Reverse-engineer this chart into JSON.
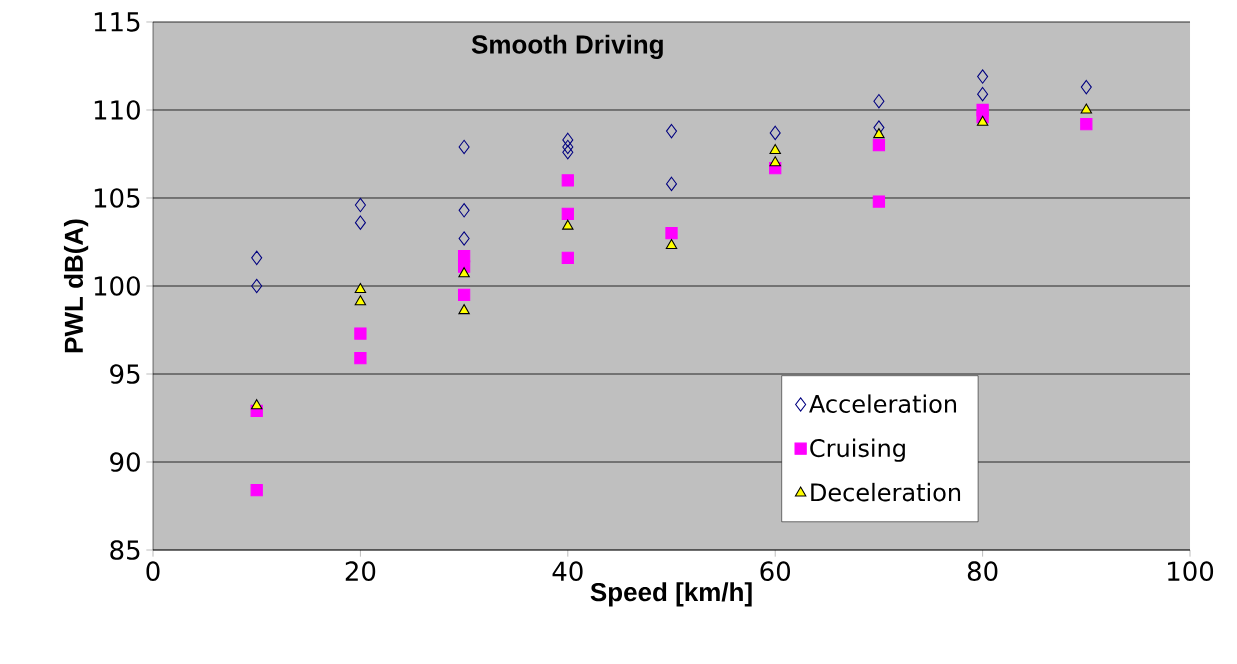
{
  "chart_data": {
    "type": "scatter",
    "title": "Smooth Driving",
    "xlabel": "Speed [km/h]",
    "ylabel": "PWL dB(A)",
    "xlim": [
      0,
      100
    ],
    "xticks": [
      0,
      20,
      40,
      60,
      80,
      100
    ],
    "ylim": [
      85,
      115
    ],
    "yticks": [
      85,
      90,
      95,
      100,
      105,
      110,
      115
    ],
    "grid": "y",
    "legend": "bottom right",
    "series": [
      {
        "name": "Acceleration",
        "color": "#000080",
        "marker": "diamond",
        "x": [
          10,
          10,
          20,
          20,
          30,
          30,
          30,
          40,
          40,
          40,
          50,
          50,
          60,
          70,
          70,
          80,
          80,
          90
        ],
        "values": [
          101.6,
          100.0,
          104.6,
          103.6,
          107.9,
          104.3,
          102.7,
          108.3,
          107.9,
          107.6,
          108.8,
          105.8,
          108.7,
          110.5,
          109.0,
          111.9,
          110.9,
          111.3
        ]
      },
      {
        "name": "Cruising",
        "color": "#ff00ff",
        "marker": "square",
        "x": [
          10,
          10,
          20,
          20,
          30,
          30,
          30,
          40,
          40,
          40,
          50,
          60,
          70,
          70,
          80,
          80,
          90
        ],
        "values": [
          92.9,
          88.4,
          97.3,
          95.9,
          101.7,
          101.1,
          99.5,
          106.0,
          104.1,
          101.6,
          103.0,
          106.7,
          108.0,
          104.8,
          110.0,
          109.6,
          109.2
        ]
      },
      {
        "name": "Deceleration",
        "color": "#ffff00",
        "marker": "triangle",
        "x": [
          10,
          20,
          20,
          30,
          30,
          40,
          50,
          60,
          60,
          70,
          80,
          90
        ],
        "values": [
          93.2,
          99.8,
          99.1,
          100.7,
          98.6,
          103.4,
          102.3,
          107.7,
          107.0,
          108.6,
          109.3,
          110.0
        ]
      }
    ]
  }
}
